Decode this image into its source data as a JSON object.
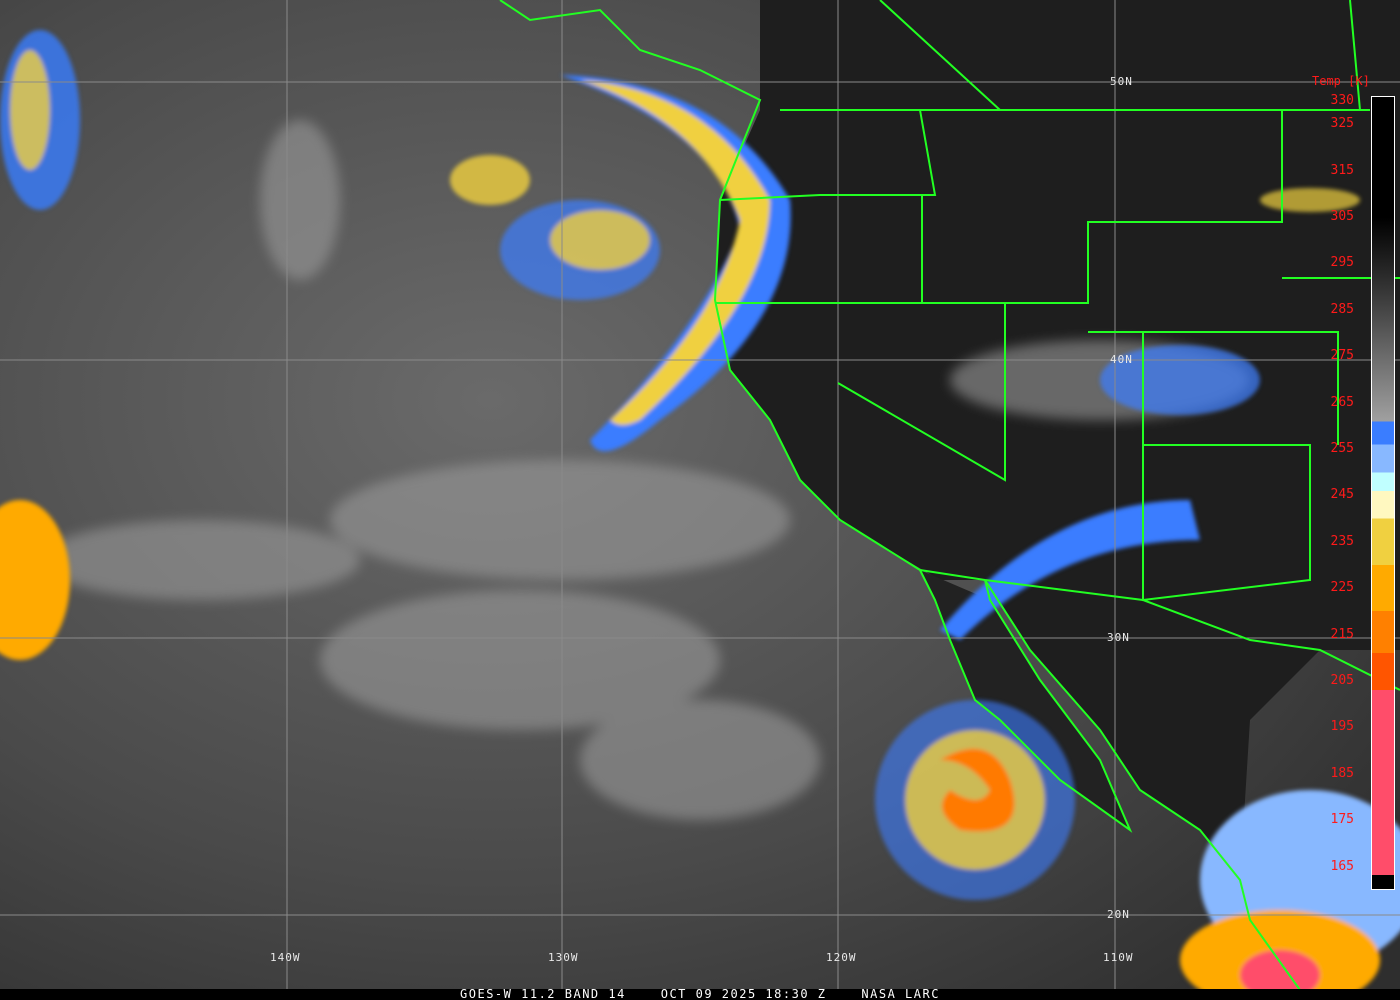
{
  "caption": {
    "satellite": "GOES-W",
    "band": "11.2 BAND 14",
    "datetime": "OCT 09 2025 18:30 Z",
    "source": "NASA LARC"
  },
  "grid_labels": {
    "lat": [
      "50N",
      "40N",
      "30N",
      "20N"
    ],
    "lon": [
      "140W",
      "130W",
      "120W",
      "110W"
    ]
  },
  "colorbar": {
    "label": "Temp [K]",
    "ticks": [
      "330",
      "325",
      "315",
      "305",
      "295",
      "285",
      "275",
      "265",
      "255",
      "245",
      "235",
      "225",
      "215",
      "205",
      "195",
      "185",
      "175",
      "165"
    ],
    "colors": {
      "warm": "#000000",
      "cool_gray": "#a0a0a0",
      "blue": "#3a7dff",
      "light_blue": "#88b8ff",
      "pale_cyan": "#c0ffff",
      "pale_yellow": "#fff8c0",
      "yellow": "#f0d040",
      "amber": "#ffaa00",
      "orange": "#ff8000",
      "red_orange": "#ff5500",
      "pink_red": "#ff4d6a"
    }
  },
  "borders_color": "#22ff22"
}
